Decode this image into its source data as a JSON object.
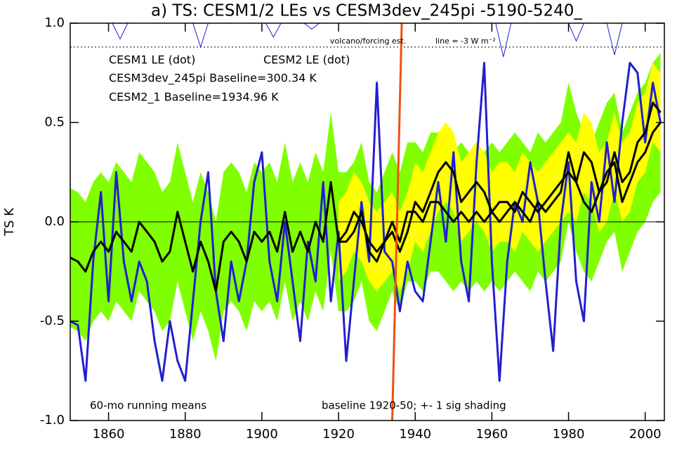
{
  "chart_data": {
    "type": "line",
    "title": "a) TS: CESM1/2 LEs vs CESM3dev_245pi -5190-5240_",
    "y_label": "TS K",
    "xlim": [
      1850,
      2005
    ],
    "ylim": [
      -1,
      1
    ],
    "xticks": [
      1860,
      1880,
      1900,
      1920,
      1940,
      1960,
      1980,
      2000
    ],
    "yticks": [
      {
        "value": 1,
        "label": "1.0"
      },
      0.5,
      {
        "value": 0,
        "label": "0.0"
      },
      -0.5,
      {
        "value": -1,
        "label": "-1.0"
      }
    ],
    "zero_line": true,
    "x": [
      1850,
      1852,
      1854,
      1856,
      1858,
      1860,
      1862,
      1864,
      1866,
      1868,
      1870,
      1872,
      1874,
      1876,
      1878,
      1880,
      1882,
      1884,
      1886,
      1888,
      1890,
      1892,
      1894,
      1896,
      1898,
      1900,
      1902,
      1904,
      1906,
      1908,
      1910,
      1912,
      1914,
      1916,
      1918,
      1920,
      1922,
      1924,
      1926,
      1928,
      1930,
      1932,
      1934,
      1936,
      1938,
      1940,
      1942,
      1944,
      1946,
      1948,
      1950,
      1952,
      1954,
      1956,
      1958,
      1960,
      1962,
      1964,
      1966,
      1968,
      1970,
      1972,
      1974,
      1976,
      1978,
      1980,
      1982,
      1984,
      1986,
      1988,
      1990,
      1992,
      1994,
      1996,
      1998,
      2000,
      2002,
      2004
    ],
    "series": [
      {
        "name": "CESM1 LE (dot)",
        "color": "#ffff00",
        "line_color": "#000000",
        "values": [
          null,
          null,
          null,
          null,
          null,
          null,
          null,
          null,
          null,
          null,
          null,
          null,
          null,
          null,
          null,
          null,
          null,
          null,
          null,
          null,
          null,
          null,
          null,
          null,
          null,
          null,
          null,
          null,
          null,
          null,
          null,
          null,
          null,
          null,
          null,
          -0.1,
          -0.05,
          0.05,
          0.0,
          -0.1,
          -0.15,
          -0.1,
          -0.05,
          -0.15,
          -0.05,
          0.1,
          0.05,
          0.15,
          0.25,
          0.3,
          0.25,
          0.1,
          0.15,
          0.2,
          0.15,
          0.05,
          0.1,
          0.1,
          0.05,
          0.15,
          0.1,
          0.05,
          0.1,
          0.15,
          0.2,
          0.25,
          0.2,
          0.35,
          0.3,
          0.15,
          0.2,
          0.35,
          0.2,
          0.25,
          0.4,
          0.45,
          0.6,
          0.55
        ],
        "upper": [
          null,
          null,
          null,
          null,
          null,
          null,
          null,
          null,
          null,
          null,
          null,
          null,
          null,
          null,
          null,
          null,
          null,
          null,
          null,
          null,
          null,
          null,
          null,
          null,
          null,
          null,
          null,
          null,
          null,
          null,
          null,
          null,
          null,
          null,
          null,
          0.1,
          0.15,
          0.25,
          0.2,
          0.1,
          0.05,
          0.1,
          0.15,
          0.05,
          0.15,
          0.3,
          0.25,
          0.35,
          0.45,
          0.5,
          0.45,
          0.3,
          0.35,
          0.4,
          0.35,
          0.25,
          0.3,
          0.3,
          0.25,
          0.35,
          0.3,
          0.25,
          0.3,
          0.35,
          0.4,
          0.45,
          0.4,
          0.55,
          0.5,
          0.35,
          0.4,
          0.55,
          0.4,
          0.45,
          0.6,
          0.65,
          0.8,
          0.75
        ],
        "lower": [
          null,
          null,
          null,
          null,
          null,
          null,
          null,
          null,
          null,
          null,
          null,
          null,
          null,
          null,
          null,
          null,
          null,
          null,
          null,
          null,
          null,
          null,
          null,
          null,
          null,
          null,
          null,
          null,
          null,
          null,
          null,
          null,
          null,
          null,
          null,
          -0.3,
          -0.25,
          -0.15,
          -0.2,
          -0.3,
          -0.35,
          -0.3,
          -0.25,
          -0.35,
          -0.25,
          -0.1,
          -0.15,
          -0.05,
          0.05,
          0.1,
          0.05,
          -0.1,
          -0.05,
          0.0,
          -0.05,
          -0.15,
          -0.1,
          -0.1,
          -0.15,
          -0.05,
          -0.1,
          -0.15,
          -0.1,
          -0.05,
          0.0,
          0.05,
          0.0,
          0.15,
          0.1,
          -0.05,
          0.0,
          0.15,
          0.0,
          0.05,
          0.2,
          0.25,
          0.4,
          0.35
        ]
      },
      {
        "name": "CESM2 LE (dot)",
        "color": "#80ff00",
        "line_color": "#000000",
        "values": [
          -0.18,
          -0.2,
          -0.25,
          -0.15,
          -0.1,
          -0.15,
          -0.05,
          -0.1,
          -0.15,
          0.0,
          -0.05,
          -0.1,
          -0.2,
          -0.15,
          0.05,
          -0.1,
          -0.25,
          -0.1,
          -0.2,
          -0.35,
          -0.1,
          -0.05,
          -0.1,
          -0.2,
          -0.05,
          -0.1,
          -0.05,
          -0.15,
          0.05,
          -0.15,
          -0.05,
          -0.15,
          0.0,
          -0.1,
          0.2,
          -0.1,
          -0.1,
          -0.05,
          0.05,
          -0.15,
          -0.2,
          -0.1,
          0.0,
          -0.1,
          0.05,
          0.05,
          0.0,
          0.1,
          0.1,
          0.05,
          0.0,
          0.05,
          0.0,
          0.05,
          0.0,
          0.05,
          0.0,
          0.05,
          0.1,
          0.05,
          0.0,
          0.1,
          0.05,
          0.1,
          0.15,
          0.35,
          0.2,
          0.1,
          0.05,
          0.15,
          0.25,
          0.3,
          0.1,
          0.2,
          0.3,
          0.35,
          0.45,
          0.5
        ],
        "upper": [
          0.17,
          0.15,
          0.1,
          0.2,
          0.25,
          0.2,
          0.3,
          0.25,
          0.2,
          0.35,
          0.3,
          0.25,
          0.15,
          0.2,
          0.4,
          0.25,
          0.1,
          0.25,
          0.15,
          0.0,
          0.25,
          0.3,
          0.25,
          0.15,
          0.3,
          0.25,
          0.3,
          0.2,
          0.4,
          0.2,
          0.3,
          0.2,
          0.35,
          0.25,
          0.55,
          0.25,
          0.25,
          0.3,
          0.4,
          0.2,
          0.15,
          0.25,
          0.35,
          0.25,
          0.4,
          0.4,
          0.35,
          0.45,
          0.45,
          0.4,
          0.35,
          0.4,
          0.35,
          0.4,
          0.35,
          0.4,
          0.35,
          0.4,
          0.45,
          0.4,
          0.35,
          0.45,
          0.4,
          0.45,
          0.5,
          0.7,
          0.55,
          0.45,
          0.4,
          0.5,
          0.6,
          0.65,
          0.45,
          0.55,
          0.65,
          0.7,
          0.8,
          0.85
        ],
        "lower": [
          -0.53,
          -0.55,
          -0.6,
          -0.5,
          -0.45,
          -0.5,
          -0.4,
          -0.45,
          -0.5,
          -0.35,
          -0.4,
          -0.45,
          -0.55,
          -0.5,
          -0.3,
          -0.45,
          -0.6,
          -0.45,
          -0.55,
          -0.7,
          -0.45,
          -0.4,
          -0.45,
          -0.55,
          -0.4,
          -0.45,
          -0.4,
          -0.5,
          -0.3,
          -0.5,
          -0.4,
          -0.5,
          -0.35,
          -0.45,
          -0.15,
          -0.45,
          -0.45,
          -0.4,
          -0.3,
          -0.5,
          -0.55,
          -0.45,
          -0.35,
          -0.45,
          -0.3,
          -0.3,
          -0.35,
          -0.25,
          -0.25,
          -0.3,
          -0.35,
          -0.3,
          -0.35,
          -0.3,
          -0.35,
          -0.3,
          -0.35,
          -0.3,
          -0.25,
          -0.3,
          -0.35,
          -0.25,
          -0.3,
          -0.25,
          -0.2,
          0.0,
          -0.15,
          -0.25,
          -0.3,
          -0.2,
          -0.1,
          -0.05,
          -0.25,
          -0.15,
          -0.05,
          0.0,
          0.1,
          0.15
        ]
      },
      {
        "name": "CESM3dev_245pi Baseline=300.34 K",
        "color": "#f05010",
        "x": [
          1934,
          1936.5
        ],
        "values": [
          -1,
          1
        ]
      },
      {
        "name": "CESM2_1 Baseline=1934.96 K",
        "color": "#2020d0",
        "values": [
          -0.5,
          -0.52,
          -0.8,
          -0.2,
          0.15,
          -0.4,
          0.25,
          -0.2,
          -0.4,
          -0.2,
          -0.3,
          -0.6,
          -0.8,
          -0.5,
          -0.7,
          -0.8,
          -0.4,
          0.0,
          0.25,
          -0.35,
          -0.6,
          -0.2,
          -0.4,
          -0.2,
          0.2,
          0.35,
          -0.2,
          -0.4,
          0.0,
          -0.3,
          -0.6,
          -0.1,
          -0.3,
          0.2,
          -0.4,
          -0.05,
          -0.7,
          -0.3,
          0.1,
          -0.2,
          0.7,
          -0.15,
          -0.2,
          -0.45,
          -0.2,
          -0.35,
          -0.4,
          -0.1,
          0.2,
          -0.1,
          0.35,
          -0.2,
          -0.4,
          0.3,
          0.8,
          -0.2,
          -0.8,
          -0.2,
          0.1,
          0.0,
          0.3,
          0.1,
          -0.3,
          -0.65,
          0.0,
          0.3,
          -0.3,
          -0.5,
          0.2,
          0.0,
          0.4,
          0.1,
          0.5,
          0.8,
          0.75,
          0.4,
          0.7,
          0.5
        ]
      }
    ],
    "forcing": {
      "label": "volcano/forcing est.",
      "color": "#2020d0",
      "x": [
        1850,
        1861,
        1863,
        1865,
        1882,
        1884,
        1886,
        1901,
        1903,
        1905,
        1911,
        1913,
        1915,
        1961,
        1963,
        1965,
        1980,
        1982,
        1984,
        1990,
        1992,
        1994,
        2005
      ],
      "values": [
        1.0,
        1.0,
        0.92,
        1.0,
        1.0,
        0.88,
        1.0,
        1.0,
        0.93,
        1.0,
        1.0,
        0.97,
        1.0,
        1.0,
        0.83,
        1.0,
        1.0,
        0.91,
        1.0,
        1.0,
        0.84,
        1.0,
        1.0
      ],
      "reference": {
        "value": 0.88,
        "label": "line = -3 W m⁻²"
      }
    },
    "annotations": [
      "60-mo running means",
      "baseline 1920-50; +- 1 sig shading"
    ]
  }
}
